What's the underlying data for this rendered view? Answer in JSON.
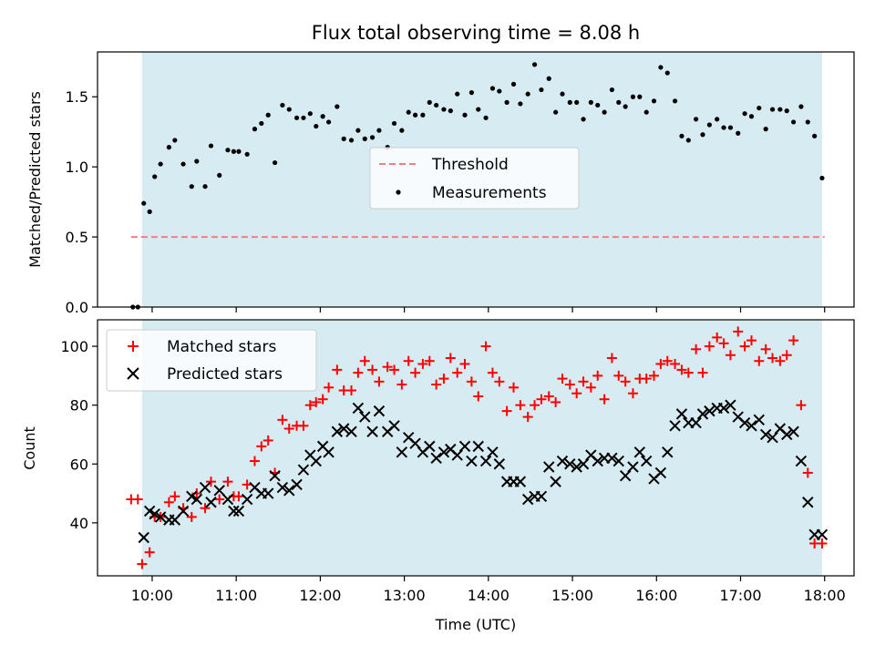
{
  "chart_data": [
    {
      "type": "scatter",
      "title": "Flux total observing time = 8.08 h",
      "xlabel": "",
      "ylabel": "Matched/Predicted stars",
      "xlim": [
        9.35,
        18.35
      ],
      "ylim": [
        0,
        1.82
      ],
      "x_ticks": [
        10,
        11,
        12,
        13,
        14,
        15,
        16,
        17,
        18
      ],
      "y_ticks": [
        0.0,
        0.5,
        1.0,
        1.5
      ],
      "y_tick_labels": [
        "0.0",
        "0.5",
        "1.0",
        "1.5"
      ],
      "shaded_span": [
        9.88,
        17.97
      ],
      "shade_color": "#add8e6",
      "legend_position": "center",
      "series": [
        {
          "name": "Threshold",
          "kind": "line",
          "style": "dashed",
          "color": "#f08080",
          "x": [
            9.75,
            18.0
          ],
          "y": [
            0.5,
            0.5
          ]
        },
        {
          "name": "Measurements",
          "kind": "scatter",
          "color": "#000000",
          "x": [
            9.77,
            9.83,
            9.9,
            9.97,
            10.03,
            10.1,
            10.2,
            10.27,
            10.37,
            10.47,
            10.53,
            10.63,
            10.7,
            10.8,
            10.9,
            10.97,
            11.03,
            11.13,
            11.22,
            11.3,
            11.38,
            11.46,
            11.55,
            11.63,
            11.72,
            11.8,
            11.88,
            11.95,
            12.03,
            12.1,
            12.2,
            12.28,
            12.37,
            12.45,
            12.53,
            12.62,
            12.7,
            12.8,
            12.88,
            12.97,
            13.05,
            13.13,
            13.22,
            13.3,
            13.38,
            13.47,
            13.55,
            13.63,
            13.72,
            13.8,
            13.88,
            13.97,
            14.05,
            14.13,
            14.22,
            14.3,
            14.38,
            14.47,
            14.55,
            14.63,
            14.72,
            14.8,
            14.88,
            14.97,
            15.05,
            15.13,
            15.22,
            15.3,
            15.38,
            15.47,
            15.55,
            15.63,
            15.72,
            15.8,
            15.88,
            15.97,
            16.05,
            16.13,
            16.22,
            16.3,
            16.38,
            16.47,
            16.55,
            16.63,
            16.72,
            16.8,
            16.88,
            16.97,
            17.05,
            17.13,
            17.22,
            17.3,
            17.38,
            17.47,
            17.55,
            17.63,
            17.72,
            17.8,
            17.88,
            17.97
          ],
          "y": [
            0.0,
            0.0,
            0.74,
            0.68,
            0.93,
            1.02,
            1.14,
            1.19,
            1.02,
            0.86,
            1.04,
            0.86,
            1.15,
            0.94,
            1.12,
            1.11,
            1.11,
            1.09,
            1.27,
            1.31,
            1.37,
            1.03,
            1.44,
            1.41,
            1.35,
            1.35,
            1.38,
            1.29,
            1.36,
            1.32,
            1.43,
            1.2,
            1.19,
            1.26,
            1.2,
            1.21,
            1.26,
            1.14,
            1.31,
            1.26,
            1.39,
            1.37,
            1.37,
            1.46,
            1.44,
            1.41,
            1.4,
            1.52,
            1.37,
            1.53,
            1.41,
            1.35,
            1.56,
            1.54,
            1.46,
            1.59,
            1.45,
            1.52,
            1.73,
            1.55,
            1.63,
            1.39,
            1.52,
            1.46,
            1.46,
            1.34,
            1.46,
            1.44,
            1.39,
            1.55,
            1.46,
            1.43,
            1.5,
            1.5,
            1.39,
            1.47,
            1.71,
            1.67,
            1.47,
            1.22,
            1.19,
            1.34,
            1.23,
            1.3,
            1.34,
            1.28,
            1.28,
            1.24,
            1.38,
            1.36,
            1.42,
            1.27,
            1.41,
            1.41,
            1.4,
            1.32,
            1.43,
            1.32,
            1.22,
            0.92
          ]
        }
      ]
    },
    {
      "type": "scatter",
      "title": "",
      "xlabel": "Time (UTC)",
      "ylabel": "Count",
      "xlim": [
        9.35,
        18.35
      ],
      "ylim": [
        22,
        109
      ],
      "x_ticks": [
        10,
        11,
        12,
        13,
        14,
        15,
        16,
        17,
        18
      ],
      "x_tick_labels": [
        "10:00",
        "11:00",
        "12:00",
        "13:00",
        "14:00",
        "15:00",
        "16:00",
        "17:00",
        "18:00"
      ],
      "y_ticks": [
        40,
        60,
        80,
        100
      ],
      "y_tick_labels": [
        "40",
        "60",
        "80",
        "100"
      ],
      "shaded_span": [
        9.88,
        17.97
      ],
      "shade_color": "#add8e6",
      "legend_position": "top-left",
      "series": [
        {
          "name": "Matched stars",
          "marker": "plus",
          "color": "#ff0000",
          "x": [
            9.75,
            9.83,
            9.88,
            9.97,
            10.03,
            10.1,
            10.2,
            10.27,
            10.37,
            10.47,
            10.53,
            10.63,
            10.7,
            10.8,
            10.9,
            10.97,
            11.03,
            11.13,
            11.22,
            11.3,
            11.38,
            11.46,
            11.55,
            11.63,
            11.72,
            11.8,
            11.88,
            11.95,
            12.03,
            12.1,
            12.2,
            12.28,
            12.37,
            12.45,
            12.53,
            12.62,
            12.7,
            12.8,
            12.88,
            12.97,
            13.05,
            13.13,
            13.22,
            13.3,
            13.38,
            13.47,
            13.55,
            13.63,
            13.72,
            13.8,
            13.88,
            13.97,
            14.05,
            14.13,
            14.22,
            14.3,
            14.38,
            14.47,
            14.55,
            14.63,
            14.72,
            14.8,
            14.88,
            14.97,
            15.05,
            15.13,
            15.22,
            15.3,
            15.38,
            15.47,
            15.55,
            15.63,
            15.72,
            15.8,
            15.88,
            15.97,
            16.05,
            16.13,
            16.22,
            16.3,
            16.38,
            16.47,
            16.55,
            16.63,
            16.72,
            16.8,
            16.88,
            16.97,
            17.05,
            17.13,
            17.22,
            17.3,
            17.38,
            17.47,
            17.55,
            17.63,
            17.72,
            17.8,
            17.88,
            17.97
          ],
          "y": [
            48,
            48,
            26,
            30,
            42,
            42,
            47,
            49,
            45,
            42,
            50,
            45,
            54,
            48,
            54,
            49,
            49,
            53,
            61,
            66,
            68,
            57,
            75,
            72,
            73,
            73,
            80,
            81,
            82,
            86,
            92,
            85,
            85,
            91,
            95,
            92,
            88,
            93,
            92,
            87,
            95,
            91,
            94,
            95,
            87,
            89,
            96,
            91,
            94,
            88,
            83,
            100,
            91,
            88,
            78,
            86,
            80,
            76,
            80,
            82,
            83,
            81,
            89,
            87,
            84,
            88,
            86,
            90,
            82,
            96,
            90,
            88,
            84,
            89,
            89,
            90,
            94,
            95,
            94,
            92,
            91,
            99,
            91,
            100,
            103,
            101,
            97,
            105,
            100,
            102,
            95,
            99,
            96,
            95,
            97,
            102,
            80,
            57,
            33,
            33
          ]
        },
        {
          "name": "Predicted stars",
          "marker": "x",
          "color": "#000000",
          "x": [
            9.9,
            9.97,
            10.03,
            10.1,
            10.2,
            10.27,
            10.37,
            10.47,
            10.53,
            10.63,
            10.7,
            10.8,
            10.9,
            10.97,
            11.03,
            11.13,
            11.22,
            11.3,
            11.38,
            11.46,
            11.55,
            11.63,
            11.72,
            11.8,
            11.88,
            11.95,
            12.03,
            12.1,
            12.2,
            12.28,
            12.37,
            12.45,
            12.53,
            12.62,
            12.7,
            12.8,
            12.88,
            12.97,
            13.05,
            13.13,
            13.22,
            13.3,
            13.38,
            13.47,
            13.55,
            13.63,
            13.72,
            13.8,
            13.88,
            13.97,
            14.05,
            14.13,
            14.22,
            14.3,
            14.38,
            14.47,
            14.55,
            14.63,
            14.72,
            14.8,
            14.88,
            14.97,
            15.05,
            15.13,
            15.22,
            15.3,
            15.38,
            15.47,
            15.55,
            15.63,
            15.72,
            15.8,
            15.88,
            15.97,
            16.05,
            16.13,
            16.22,
            16.3,
            16.38,
            16.47,
            16.55,
            16.63,
            16.72,
            16.8,
            16.88,
            16.97,
            17.05,
            17.13,
            17.22,
            17.3,
            17.38,
            17.47,
            17.55,
            17.63,
            17.72,
            17.8,
            17.88,
            17.97
          ],
          "y": [
            35,
            44,
            43,
            42,
            41,
            41,
            44,
            49,
            48,
            52,
            47,
            51,
            48,
            44,
            44,
            48,
            52,
            50,
            50,
            56,
            52,
            51,
            53,
            58,
            63,
            61,
            66,
            64,
            71,
            72,
            71,
            79,
            76,
            71,
            78,
            71,
            73,
            64,
            69,
            67,
            64,
            66,
            62,
            64,
            65,
            63,
            66,
            61,
            66,
            61,
            64,
            60,
            54,
            54,
            54,
            48,
            49,
            49,
            59,
            54,
            61,
            60,
            59,
            60,
            63,
            61,
            62,
            62,
            61,
            56,
            59,
            64,
            61,
            55,
            57,
            64,
            73,
            77,
            74,
            74,
            77,
            78,
            79,
            79,
            80,
            76,
            74,
            73,
            75,
            70,
            69,
            72,
            70,
            71,
            61,
            47,
            36,
            36
          ]
        }
      ]
    }
  ]
}
